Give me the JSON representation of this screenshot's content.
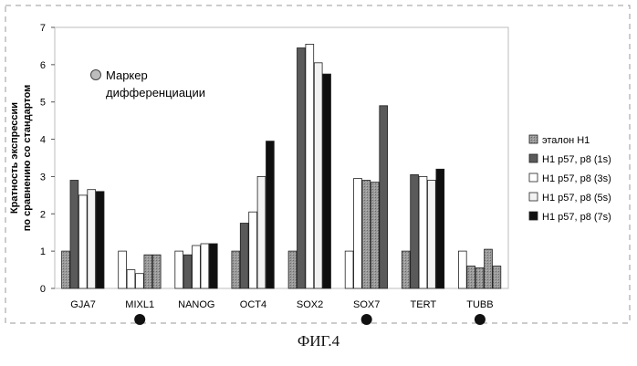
{
  "figure_caption": "ФИГ.4",
  "chart_data": {
    "type": "bar",
    "title": "",
    "xlabel": "",
    "ylabel": "Кратность экспрессии\nпо сравнению со стандартом",
    "ylim": [
      0,
      7
    ],
    "yticks": [
      0,
      1,
      2,
      3,
      4,
      5,
      6,
      7
    ],
    "grid": false,
    "legend_position": "right",
    "categories": [
      "GJA7",
      "MIXL1",
      "NANOG",
      "OCT4",
      "SOX2",
      "SOX7",
      "TERT",
      "TUBB"
    ],
    "differentiation_markers": [
      "MIXL1",
      "SOX7",
      "TUBB"
    ],
    "annotation": {
      "marker_label": "Маркер\nдифференциации"
    },
    "series": [
      {
        "name": "эталон H1",
        "color": "#8c8c8c",
        "values": [
          1.0,
          1.0,
          1.0,
          1.0,
          1.0,
          1.0,
          1.0,
          1.0
        ]
      },
      {
        "name": "H1 p57, p8 (1s)",
        "color": "#5a5a5a",
        "values": [
          2.9,
          0.5,
          0.9,
          1.75,
          6.45,
          2.95,
          3.05,
          0.6
        ]
      },
      {
        "name": "H1 p57, p8 (3s)",
        "color": "#ffffff",
        "values": [
          2.5,
          0.4,
          1.15,
          2.05,
          6.55,
          2.9,
          3.0,
          0.55
        ]
      },
      {
        "name": "H1 p57, p8 (5s)",
        "color": "#f2f2f2",
        "values": [
          2.65,
          0.9,
          1.2,
          3.0,
          6.05,
          2.85,
          2.9,
          1.05
        ]
      },
      {
        "name": "H1 p57, p8 (7s)",
        "color": "#0f0f0f",
        "values": [
          2.6,
          0.9,
          1.2,
          3.95,
          5.75,
          4.9,
          3.2,
          0.6
        ]
      }
    ],
    "category_colors": {
      "MIXL1": [
        "#ffffff",
        "#ffffff",
        "#ffffff",
        "#8c8c8c",
        "#8c8c8c"
      ],
      "NANOG": [
        "#ffffff",
        "#5a5a5a",
        "#ffffff",
        "#ffffff",
        "#0f0f0f"
      ],
      "SOX7": [
        "#ffffff",
        "#ffffff",
        "#8c8c8c",
        "#8c8c8c",
        "#5a5a5a"
      ],
      "TUBB": [
        "#ffffff",
        "#8c8c8c",
        "#8c8c8c",
        "#8c8c8c",
        "#8c8c8c"
      ]
    }
  }
}
